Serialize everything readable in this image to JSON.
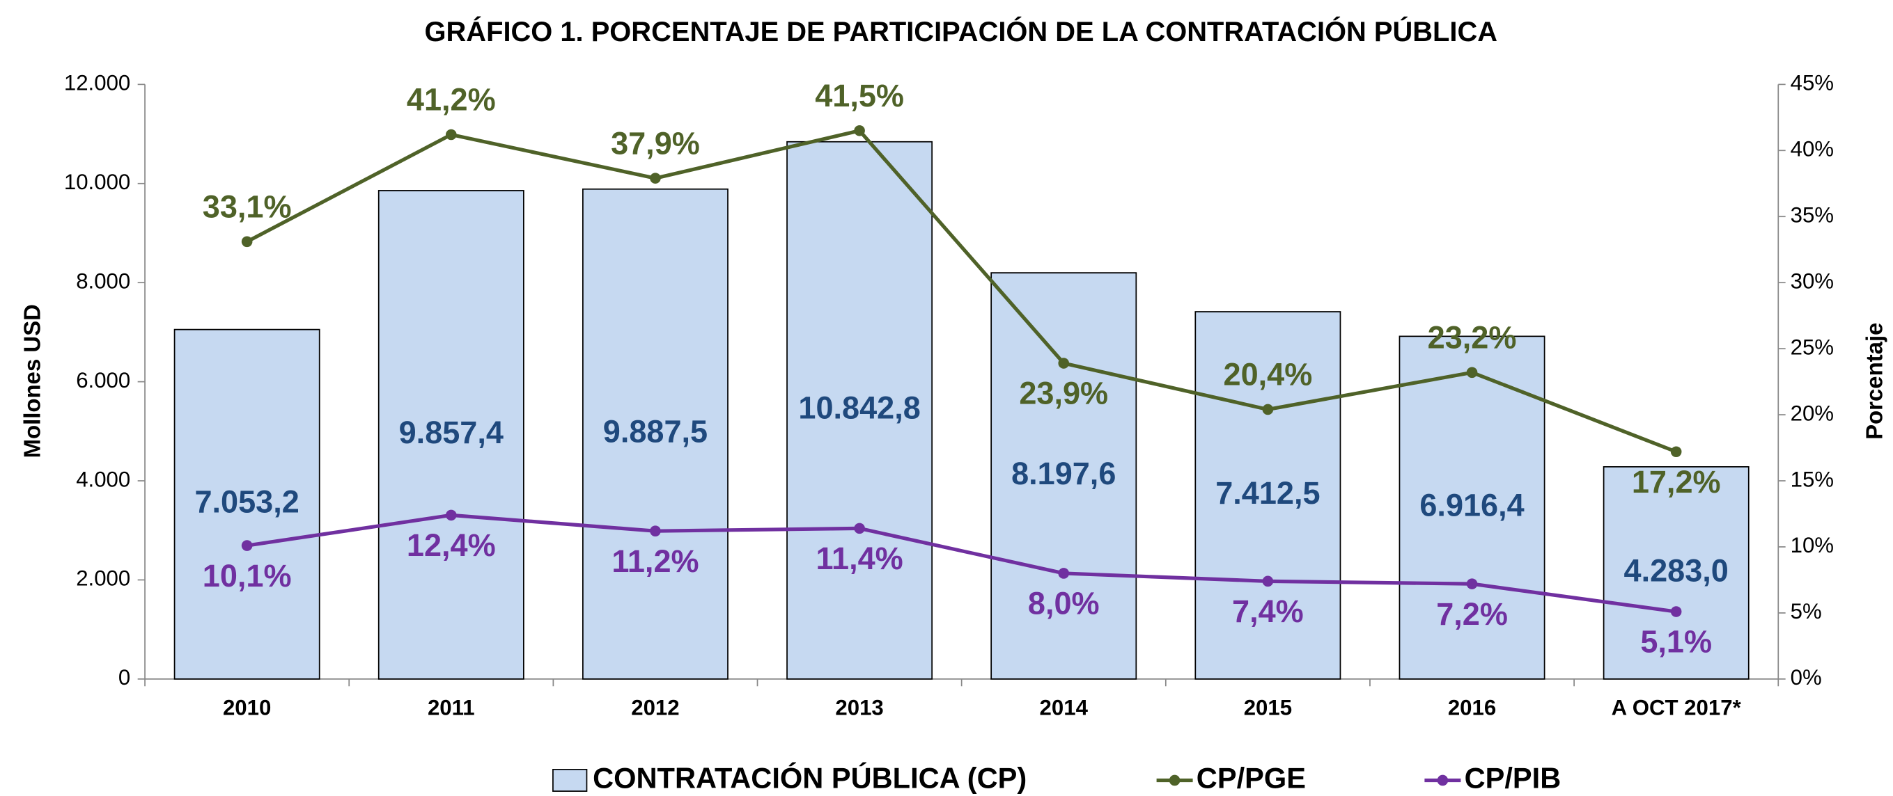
{
  "chart_data": {
    "type": "combo",
    "title": "GRÁFICO 1.  PORCENTAJE DE PARTICIPACIÓN DE LA CONTRATACIÓN PÚBLICA",
    "y_label": "Mollones USD",
    "y2_label": "Porcentaje",
    "categories": [
      "2010",
      "2011",
      "2012",
      "2013",
      "2014",
      "2015",
      "2016",
      "A OCT 2017*"
    ],
    "series": [
      {
        "name": "CONTRATACIÓN PÚBLICA (CP)",
        "type": "bar",
        "color": "#c6d9f1",
        "values": [
          7053.2,
          9857.4,
          9887.5,
          10842.8,
          8197.6,
          7412.5,
          6916.4,
          4283.0
        ],
        "value_labels": [
          "7.053,2",
          "9.857,4",
          "9.887,5",
          "10.842,8",
          "8.197,6",
          "7.412,5",
          "6.916,4",
          "4.283,0"
        ]
      },
      {
        "name": "CP/PGE",
        "type": "line",
        "axis": "y2",
        "color": "#4f6228",
        "values": [
          33.1,
          41.2,
          37.9,
          41.5,
          23.9,
          20.4,
          23.2,
          17.2
        ],
        "value_labels": [
          "33,1%",
          "41,2%",
          "37,9%",
          "41,5%",
          "23,9%",
          "20,4%",
          "23,2%",
          "17,2%"
        ]
      },
      {
        "name": "CP/PIB",
        "type": "line",
        "axis": "y2",
        "color": "#7030a0",
        "values": [
          10.1,
          12.4,
          11.2,
          11.4,
          8.0,
          7.4,
          7.2,
          5.1
        ],
        "value_labels": [
          "10,1%",
          "12,4%",
          "11,2%",
          "11,4%",
          "8,0%",
          "7,4%",
          "7,2%",
          "5,1%"
        ]
      }
    ],
    "ylim": [
      0,
      12000
    ],
    "yticks": [
      0,
      {
        "value": 2000,
        "label": "2.000"
      },
      {
        "value": 4000,
        "label": "4.000"
      },
      {
        "value": 6000,
        "label": "6.000"
      },
      {
        "value": 8000,
        "label": "8.000"
      },
      {
        "value": 10000,
        "label": "10.000"
      },
      {
        "value": 12000,
        "label": "12.000"
      }
    ],
    "y2lim": [
      0,
      45
    ],
    "y2ticks": [
      {
        "value": 0,
        "label": "0%"
      },
      {
        "value": 5,
        "label": "5%"
      },
      {
        "value": 10,
        "label": "10%"
      },
      {
        "value": 15,
        "label": "15%"
      },
      {
        "value": 20,
        "label": "20%"
      },
      {
        "value": 25,
        "label": "25%"
      },
      {
        "value": 30,
        "label": "30%"
      },
      {
        "value": 35,
        "label": "35%"
      },
      {
        "value": 40,
        "label": "40%"
      },
      {
        "value": 45,
        "label": "45%"
      }
    ],
    "grid": false,
    "legend": "bottom"
  }
}
